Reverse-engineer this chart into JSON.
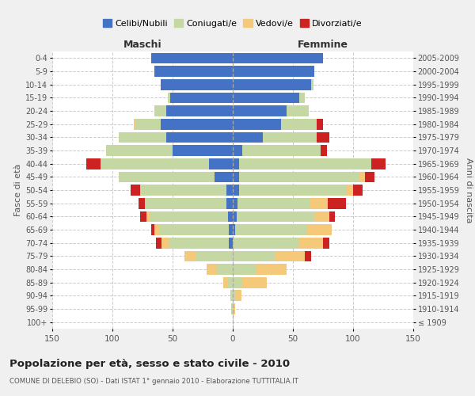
{
  "age_groups": [
    "100+",
    "95-99",
    "90-94",
    "85-89",
    "80-84",
    "75-79",
    "70-74",
    "65-69",
    "60-64",
    "55-59",
    "50-54",
    "45-49",
    "40-44",
    "35-39",
    "30-34",
    "25-29",
    "20-24",
    "15-19",
    "10-14",
    "5-9",
    "0-4"
  ],
  "birth_years": [
    "≤ 1909",
    "1910-1914",
    "1915-1919",
    "1920-1924",
    "1925-1929",
    "1930-1934",
    "1935-1939",
    "1940-1944",
    "1945-1949",
    "1950-1954",
    "1955-1959",
    "1960-1964",
    "1965-1969",
    "1970-1974",
    "1975-1979",
    "1980-1984",
    "1985-1989",
    "1990-1994",
    "1995-1999",
    "2000-2004",
    "2005-2009"
  ],
  "male_celibi": [
    0,
    0,
    0,
    0,
    0,
    0,
    3,
    3,
    4,
    5,
    5,
    15,
    20,
    50,
    55,
    60,
    55,
    52,
    60,
    65,
    68
  ],
  "male_coniugati": [
    0,
    1,
    2,
    4,
    14,
    30,
    50,
    58,
    65,
    68,
    72,
    80,
    90,
    55,
    40,
    20,
    10,
    2,
    0,
    0,
    0
  ],
  "male_vedovi": [
    0,
    0,
    0,
    4,
    8,
    10,
    6,
    4,
    3,
    0,
    0,
    0,
    0,
    0,
    0,
    2,
    0,
    0,
    0,
    0,
    0
  ],
  "male_divorziati": [
    0,
    0,
    0,
    0,
    0,
    0,
    5,
    3,
    5,
    5,
    8,
    0,
    12,
    0,
    0,
    0,
    0,
    0,
    0,
    0,
    0
  ],
  "female_nubili": [
    0,
    0,
    0,
    0,
    0,
    0,
    0,
    2,
    3,
    4,
    5,
    5,
    5,
    8,
    25,
    40,
    45,
    55,
    65,
    68,
    75
  ],
  "female_coniugate": [
    0,
    0,
    2,
    8,
    20,
    35,
    55,
    60,
    65,
    60,
    90,
    100,
    110,
    65,
    45,
    30,
    18,
    5,
    2,
    0,
    0
  ],
  "female_vedove": [
    0,
    2,
    5,
    20,
    25,
    25,
    20,
    20,
    12,
    15,
    5,
    5,
    0,
    0,
    0,
    0,
    0,
    0,
    0,
    0,
    0
  ],
  "female_divorziate": [
    0,
    0,
    0,
    0,
    0,
    5,
    5,
    0,
    5,
    15,
    8,
    8,
    12,
    5,
    10,
    5,
    0,
    0,
    0,
    0,
    0
  ],
  "colors": {
    "celibi": "#4472C4",
    "coniugati": "#C5D8A4",
    "vedovi": "#F5C97A",
    "divorziati": "#CC2222"
  },
  "xlim": 150,
  "title": "Popolazione per età, sesso e stato civile - 2010",
  "subtitle": "COMUNE DI DELEBIO (SO) - Dati ISTAT 1° gennaio 2010 - Elaborazione TUTTITALIA.IT",
  "ylabel_left": "Fasce di età",
  "ylabel_right": "Anni di nascita",
  "label_maschi": "Maschi",
  "label_femmine": "Femmine",
  "bg_color": "#f0f0f0",
  "plot_bg_color": "#ffffff",
  "legend_labels": [
    "Celibi/Nubili",
    "Coniugati/e",
    "Vedovi/e",
    "Divorziati/e"
  ],
  "xticks": [
    -150,
    -100,
    -50,
    0,
    50,
    100,
    150
  ]
}
